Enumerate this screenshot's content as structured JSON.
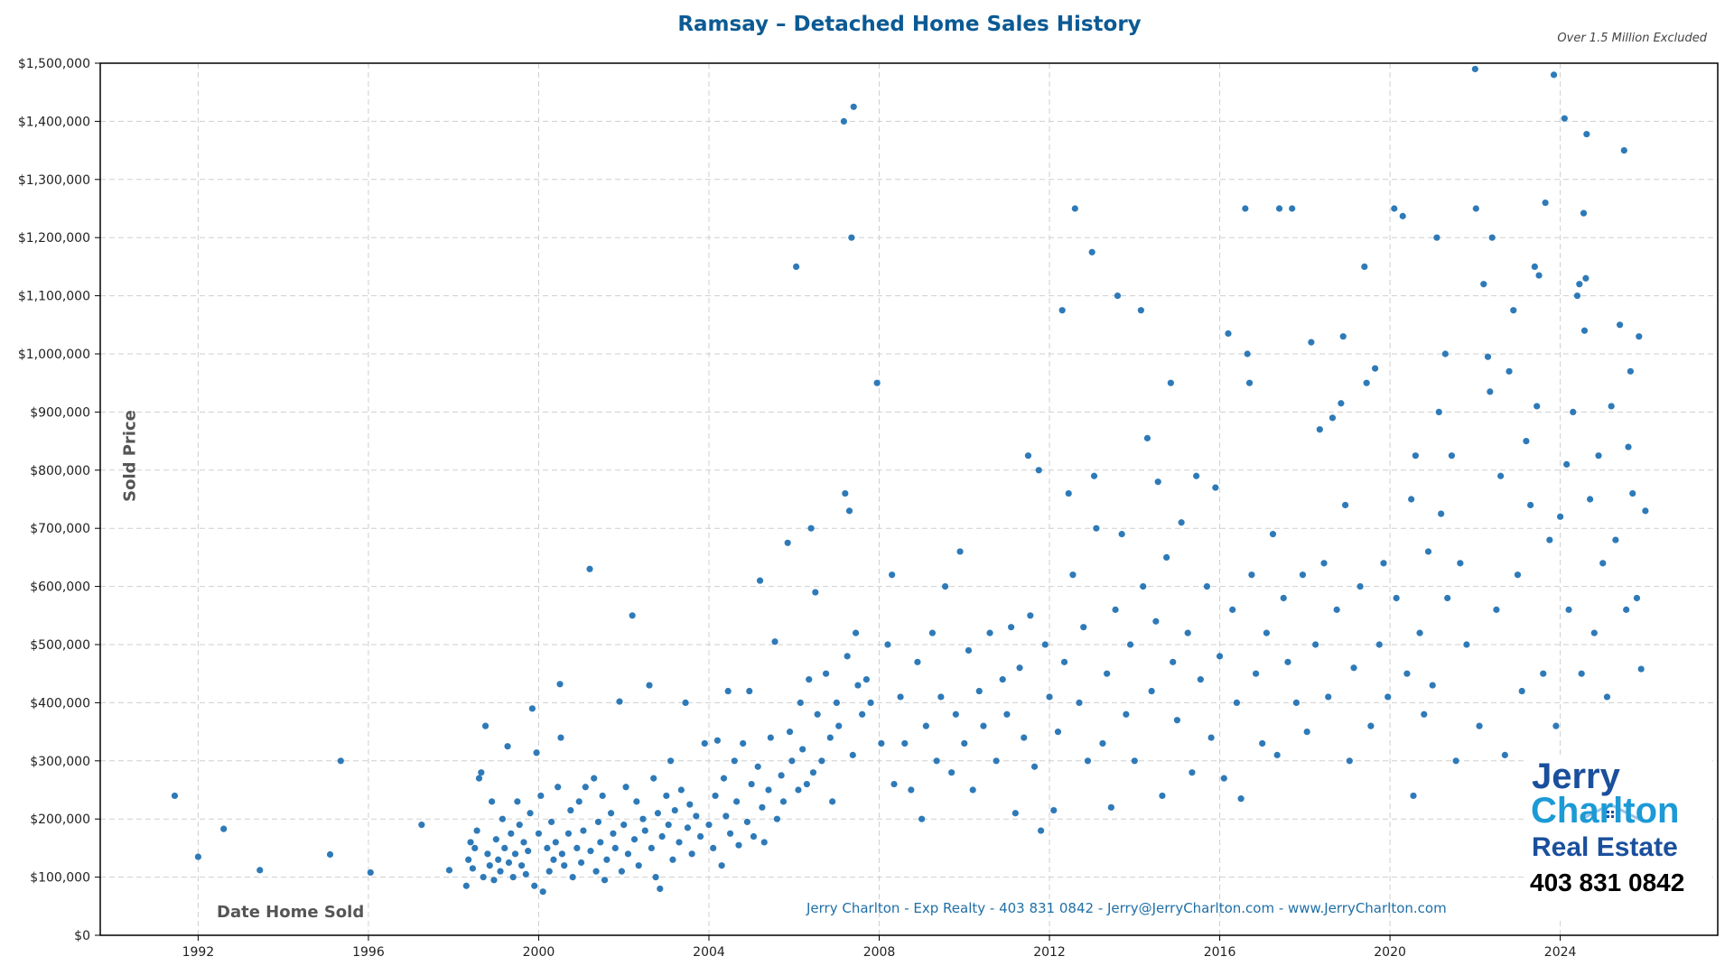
{
  "chart_data": {
    "type": "scatter",
    "title": "Ramsay – Detached Home Sales History",
    "note": "Over 1.5 Million Excluded",
    "xlabel": "Date Home Sold",
    "ylabel": "Sold Price",
    "xlim": [
      1989.7,
      2027.7
    ],
    "ylim": [
      0,
      1500000
    ],
    "x_ticks": [
      1992,
      1996,
      2000,
      2004,
      2008,
      2012,
      2016,
      2020,
      2024
    ],
    "y_ticks": [
      0,
      100000,
      200000,
      300000,
      400000,
      500000,
      600000,
      700000,
      800000,
      900000,
      1000000,
      1100000,
      1200000,
      1300000,
      1400000,
      1500000
    ],
    "y_tick_labels": [
      "$0",
      "$100,000",
      "$200,000",
      "$300,000",
      "$400,000",
      "$500,000",
      "$600,000",
      "$700,000",
      "$800,000",
      "$900,000",
      "$1,000,000",
      "$1,100,000",
      "$1,200,000",
      "$1,300,000",
      "$1,400,000",
      "$1,500,000"
    ],
    "grid": true,
    "point_color": "#2e7ab8",
    "y_unit_multiplier": 1000,
    "points_year_priceK": [
      [
        1991.45,
        240
      ],
      [
        1992.0,
        135
      ],
      [
        1992.6,
        183
      ],
      [
        1993.45,
        112
      ],
      [
        1995.1,
        139
      ],
      [
        1995.35,
        300
      ],
      [
        1996.05,
        108
      ],
      [
        1997.25,
        190
      ],
      [
        1997.9,
        112
      ],
      [
        1998.3,
        85
      ],
      [
        1998.35,
        130
      ],
      [
        1998.4,
        160
      ],
      [
        1998.45,
        115
      ],
      [
        1998.5,
        150
      ],
      [
        1998.55,
        180
      ],
      [
        1998.6,
        270
      ],
      [
        1998.65,
        280
      ],
      [
        1998.7,
        100
      ],
      [
        1998.75,
        360
      ],
      [
        1998.8,
        140
      ],
      [
        1998.85,
        120
      ],
      [
        1998.9,
        230
      ],
      [
        1998.95,
        95
      ],
      [
        1999.0,
        165
      ],
      [
        1999.05,
        130
      ],
      [
        1999.1,
        110
      ],
      [
        1999.15,
        200
      ],
      [
        1999.2,
        150
      ],
      [
        1999.27,
        325
      ],
      [
        1999.3,
        125
      ],
      [
        1999.35,
        175
      ],
      [
        1999.4,
        100
      ],
      [
        1999.45,
        140
      ],
      [
        1999.5,
        230
      ],
      [
        1999.55,
        190
      ],
      [
        1999.6,
        120
      ],
      [
        1999.65,
        160
      ],
      [
        1999.7,
        105
      ],
      [
        1999.75,
        145
      ],
      [
        1999.8,
        210
      ],
      [
        1999.85,
        390
      ],
      [
        1999.9,
        85
      ],
      [
        1999.95,
        314
      ],
      [
        2000.0,
        175
      ],
      [
        2000.05,
        240
      ],
      [
        2000.1,
        75
      ],
      [
        2000.2,
        150
      ],
      [
        2000.25,
        110
      ],
      [
        2000.3,
        195
      ],
      [
        2000.35,
        130
      ],
      [
        2000.4,
        160
      ],
      [
        2000.45,
        255
      ],
      [
        2000.5,
        432
      ],
      [
        2000.52,
        340
      ],
      [
        2000.55,
        140
      ],
      [
        2000.6,
        120
      ],
      [
        2000.7,
        175
      ],
      [
        2000.75,
        215
      ],
      [
        2000.8,
        100
      ],
      [
        2000.9,
        150
      ],
      [
        2000.95,
        230
      ],
      [
        2001.0,
        125
      ],
      [
        2001.05,
        180
      ],
      [
        2001.1,
        255
      ],
      [
        2001.2,
        630
      ],
      [
        2001.22,
        145
      ],
      [
        2001.3,
        270
      ],
      [
        2001.35,
        110
      ],
      [
        2001.4,
        195
      ],
      [
        2001.45,
        160
      ],
      [
        2001.5,
        240
      ],
      [
        2001.55,
        95
      ],
      [
        2001.6,
        130
      ],
      [
        2001.7,
        210
      ],
      [
        2001.75,
        175
      ],
      [
        2001.8,
        150
      ],
      [
        2001.9,
        402
      ],
      [
        2001.95,
        110
      ],
      [
        2002.0,
        190
      ],
      [
        2002.05,
        255
      ],
      [
        2002.1,
        140
      ],
      [
        2002.2,
        550
      ],
      [
        2002.25,
        165
      ],
      [
        2002.3,
        230
      ],
      [
        2002.35,
        120
      ],
      [
        2002.45,
        200
      ],
      [
        2002.5,
        180
      ],
      [
        2002.6,
        430
      ],
      [
        2002.65,
        150
      ],
      [
        2002.7,
        270
      ],
      [
        2002.75,
        100
      ],
      [
        2002.8,
        210
      ],
      [
        2002.85,
        80
      ],
      [
        2002.9,
        170
      ],
      [
        2003.0,
        240
      ],
      [
        2003.05,
        190
      ],
      [
        2003.1,
        300
      ],
      [
        2003.15,
        130
      ],
      [
        2003.2,
        215
      ],
      [
        2003.3,
        160
      ],
      [
        2003.35,
        250
      ],
      [
        2003.45,
        400
      ],
      [
        2003.5,
        185
      ],
      [
        2003.55,
        225
      ],
      [
        2003.6,
        140
      ],
      [
        2003.7,
        205
      ],
      [
        2003.8,
        170
      ],
      [
        2003.9,
        330
      ],
      [
        2004.0,
        190
      ],
      [
        2004.1,
        150
      ],
      [
        2004.15,
        240
      ],
      [
        2004.2,
        335
      ],
      [
        2004.3,
        120
      ],
      [
        2004.35,
        270
      ],
      [
        2004.4,
        205
      ],
      [
        2004.45,
        420
      ],
      [
        2004.5,
        175
      ],
      [
        2004.6,
        300
      ],
      [
        2004.65,
        230
      ],
      [
        2004.7,
        155
      ],
      [
        2004.8,
        330
      ],
      [
        2004.9,
        195
      ],
      [
        2004.95,
        420
      ],
      [
        2005.0,
        260
      ],
      [
        2005.05,
        170
      ],
      [
        2005.15,
        290
      ],
      [
        2005.2,
        610
      ],
      [
        2005.25,
        220
      ],
      [
        2005.3,
        160
      ],
      [
        2005.4,
        250
      ],
      [
        2005.45,
        340
      ],
      [
        2005.55,
        505
      ],
      [
        2005.6,
        200
      ],
      [
        2005.7,
        275
      ],
      [
        2005.75,
        230
      ],
      [
        2005.85,
        675
      ],
      [
        2005.9,
        350
      ],
      [
        2005.95,
        300
      ],
      [
        2006.05,
        1150
      ],
      [
        2006.1,
        250
      ],
      [
        2006.15,
        400
      ],
      [
        2006.2,
        320
      ],
      [
        2006.3,
        260
      ],
      [
        2006.35,
        440
      ],
      [
        2006.4,
        700
      ],
      [
        2006.45,
        280
      ],
      [
        2006.5,
        590
      ],
      [
        2006.55,
        380
      ],
      [
        2006.65,
        300
      ],
      [
        2006.75,
        450
      ],
      [
        2006.85,
        340
      ],
      [
        2006.9,
        230
      ],
      [
        2007.0,
        400
      ],
      [
        2007.05,
        360
      ],
      [
        2007.17,
        1400
      ],
      [
        2007.2,
        760
      ],
      [
        2007.25,
        480
      ],
      [
        2007.3,
        730
      ],
      [
        2007.35,
        1200
      ],
      [
        2007.38,
        310
      ],
      [
        2007.4,
        1425
      ],
      [
        2007.45,
        520
      ],
      [
        2007.5,
        430
      ],
      [
        2007.6,
        380
      ],
      [
        2007.7,
        440
      ],
      [
        2007.8,
        400
      ],
      [
        2007.95,
        950
      ],
      [
        2008.05,
        330
      ],
      [
        2008.2,
        500
      ],
      [
        2008.3,
        620
      ],
      [
        2008.35,
        260
      ],
      [
        2008.5,
        410
      ],
      [
        2008.6,
        330
      ],
      [
        2008.75,
        250
      ],
      [
        2008.9,
        470
      ],
      [
        2009.0,
        200
      ],
      [
        2009.1,
        360
      ],
      [
        2009.25,
        520
      ],
      [
        2009.35,
        300
      ],
      [
        2009.45,
        410
      ],
      [
        2009.55,
        600
      ],
      [
        2009.7,
        280
      ],
      [
        2009.8,
        380
      ],
      [
        2009.9,
        660
      ],
      [
        2010.0,
        330
      ],
      [
        2010.1,
        490
      ],
      [
        2010.2,
        250
      ],
      [
        2010.35,
        420
      ],
      [
        2010.45,
        360
      ],
      [
        2010.6,
        520
      ],
      [
        2010.75,
        300
      ],
      [
        2010.9,
        440
      ],
      [
        2011.0,
        380
      ],
      [
        2011.1,
        530
      ],
      [
        2011.2,
        210
      ],
      [
        2011.3,
        460
      ],
      [
        2011.4,
        340
      ],
      [
        2011.5,
        825
      ],
      [
        2011.55,
        550
      ],
      [
        2011.65,
        290
      ],
      [
        2011.75,
        800
      ],
      [
        2011.8,
        180
      ],
      [
        2011.9,
        500
      ],
      [
        2012.0,
        410
      ],
      [
        2012.1,
        215
      ],
      [
        2012.2,
        350
      ],
      [
        2012.3,
        1075
      ],
      [
        2012.35,
        470
      ],
      [
        2012.45,
        760
      ],
      [
        2012.55,
        620
      ],
      [
        2012.6,
        1250
      ],
      [
        2012.7,
        400
      ],
      [
        2012.8,
        530
      ],
      [
        2012.9,
        300
      ],
      [
        2013.0,
        1175
      ],
      [
        2013.05,
        790
      ],
      [
        2013.1,
        700
      ],
      [
        2013.25,
        330
      ],
      [
        2013.35,
        450
      ],
      [
        2013.45,
        220
      ],
      [
        2013.55,
        560
      ],
      [
        2013.6,
        1100
      ],
      [
        2013.7,
        690
      ],
      [
        2013.8,
        380
      ],
      [
        2013.9,
        500
      ],
      [
        2014.0,
        300
      ],
      [
        2014.15,
        1075
      ],
      [
        2014.2,
        600
      ],
      [
        2014.3,
        855
      ],
      [
        2014.4,
        420
      ],
      [
        2014.5,
        540
      ],
      [
        2014.55,
        780
      ],
      [
        2014.65,
        240
      ],
      [
        2014.75,
        650
      ],
      [
        2014.85,
        950
      ],
      [
        2014.9,
        470
      ],
      [
        2015.0,
        370
      ],
      [
        2015.1,
        710
      ],
      [
        2015.25,
        520
      ],
      [
        2015.35,
        280
      ],
      [
        2015.45,
        790
      ],
      [
        2015.55,
        440
      ],
      [
        2015.7,
        600
      ],
      [
        2015.8,
        340
      ],
      [
        2015.9,
        770
      ],
      [
        2016.0,
        480
      ],
      [
        2016.1,
        270
      ],
      [
        2016.2,
        1035
      ],
      [
        2016.3,
        560
      ],
      [
        2016.4,
        400
      ],
      [
        2016.5,
        235
      ],
      [
        2016.6,
        1250
      ],
      [
        2016.65,
        1000
      ],
      [
        2016.7,
        950
      ],
      [
        2016.75,
        620
      ],
      [
        2016.85,
        450
      ],
      [
        2017.0,
        330
      ],
      [
        2017.1,
        520
      ],
      [
        2017.25,
        690
      ],
      [
        2017.35,
        310
      ],
      [
        2017.4,
        1250
      ],
      [
        2017.5,
        580
      ],
      [
        2017.6,
        470
      ],
      [
        2017.7,
        1250
      ],
      [
        2017.8,
        400
      ],
      [
        2017.95,
        620
      ],
      [
        2018.05,
        350
      ],
      [
        2018.15,
        1020
      ],
      [
        2018.25,
        500
      ],
      [
        2018.35,
        870
      ],
      [
        2018.45,
        640
      ],
      [
        2018.55,
        410
      ],
      [
        2018.65,
        890
      ],
      [
        2018.75,
        560
      ],
      [
        2018.85,
        915
      ],
      [
        2018.9,
        1030
      ],
      [
        2018.95,
        740
      ],
      [
        2019.05,
        300
      ],
      [
        2019.15,
        460
      ],
      [
        2019.3,
        600
      ],
      [
        2019.4,
        1150
      ],
      [
        2019.45,
        950
      ],
      [
        2019.55,
        360
      ],
      [
        2019.65,
        975
      ],
      [
        2019.75,
        500
      ],
      [
        2019.85,
        640
      ],
      [
        2019.95,
        410
      ],
      [
        2020.1,
        1250
      ],
      [
        2020.15,
        580
      ],
      [
        2020.3,
        1237
      ],
      [
        2020.4,
        450
      ],
      [
        2020.5,
        750
      ],
      [
        2020.55,
        240
      ],
      [
        2020.6,
        825
      ],
      [
        2020.7,
        520
      ],
      [
        2020.8,
        380
      ],
      [
        2020.9,
        660
      ],
      [
        2021.0,
        430
      ],
      [
        2021.1,
        1200
      ],
      [
        2021.15,
        900
      ],
      [
        2021.2,
        725
      ],
      [
        2021.3,
        1000
      ],
      [
        2021.35,
        580
      ],
      [
        2021.45,
        825
      ],
      [
        2021.55,
        300
      ],
      [
        2021.65,
        640
      ],
      [
        2021.8,
        500
      ],
      [
        2022.0,
        1490
      ],
      [
        2022.02,
        1250
      ],
      [
        2022.1,
        360
      ],
      [
        2022.2,
        1120
      ],
      [
        2022.3,
        995
      ],
      [
        2022.35,
        935
      ],
      [
        2022.4,
        1200
      ],
      [
        2022.5,
        560
      ],
      [
        2022.6,
        790
      ],
      [
        2022.7,
        310
      ],
      [
        2022.8,
        970
      ],
      [
        2022.9,
        1075
      ],
      [
        2023.0,
        620
      ],
      [
        2023.1,
        420
      ],
      [
        2023.2,
        850
      ],
      [
        2023.3,
        740
      ],
      [
        2023.4,
        1150
      ],
      [
        2023.45,
        910
      ],
      [
        2023.5,
        1135
      ],
      [
        2023.6,
        450
      ],
      [
        2023.65,
        1260
      ],
      [
        2023.75,
        680
      ],
      [
        2023.85,
        1480
      ],
      [
        2023.9,
        360
      ],
      [
        2024.0,
        720
      ],
      [
        2024.1,
        1405
      ],
      [
        2024.15,
        810
      ],
      [
        2024.2,
        560
      ],
      [
        2024.3,
        900
      ],
      [
        2024.4,
        1100
      ],
      [
        2024.45,
        1120
      ],
      [
        2024.5,
        450
      ],
      [
        2024.55,
        1242
      ],
      [
        2024.57,
        1040
      ],
      [
        2024.6,
        1130
      ],
      [
        2024.62,
        1378
      ],
      [
        2024.7,
        750
      ],
      [
        2024.8,
        520
      ],
      [
        2024.9,
        825
      ],
      [
        2025.0,
        640
      ],
      [
        2025.1,
        410
      ],
      [
        2025.2,
        910
      ],
      [
        2025.3,
        680
      ],
      [
        2025.4,
        1050
      ],
      [
        2025.5,
        1350
      ],
      [
        2025.55,
        560
      ],
      [
        2025.6,
        840
      ],
      [
        2025.65,
        970
      ],
      [
        2025.7,
        760
      ],
      [
        2025.8,
        580
      ],
      [
        2025.85,
        1030
      ],
      [
        2025.9,
        458
      ],
      [
        2026.0,
        730
      ]
    ]
  },
  "footer": "Jerry Charlton - Exp Realty - 403 831 0842 - Jerry@JerryCharlton.com - www.JerryCharlton.com",
  "logo": {
    "line1": "Jerry",
    "line2": "Charlton",
    "line3": "Real Estate",
    "phone": "403 831 0842"
  }
}
